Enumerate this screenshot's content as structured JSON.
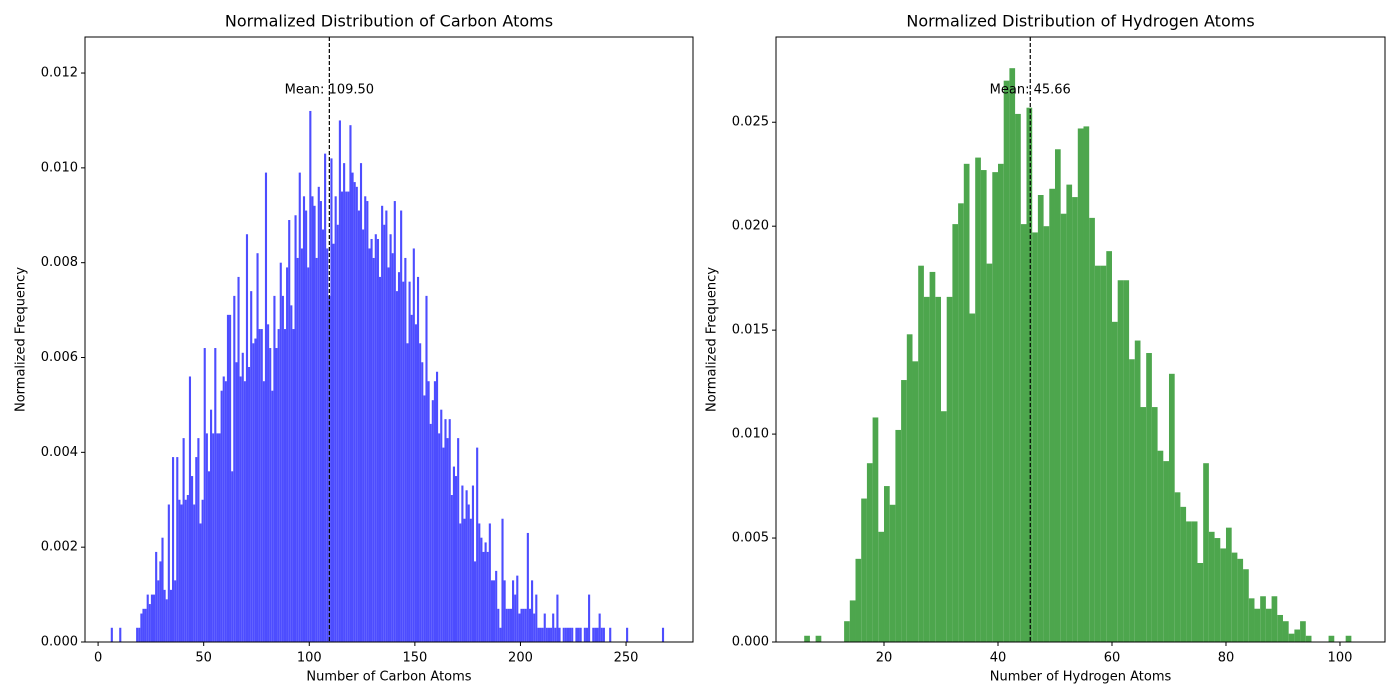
{
  "chart_data": [
    {
      "type": "histogram",
      "title": "Normalized Distribution of Carbon Atoms",
      "x_label": "Number of Carbon Atoms",
      "y_label": "Normalized Frequency",
      "color": "#4d4dff",
      "bins": [
        5,
        6,
        7,
        8,
        9,
        10,
        11,
        12,
        13,
        14,
        15,
        16,
        17,
        18,
        19,
        20,
        21,
        22,
        23,
        24,
        25,
        26,
        27,
        28,
        29,
        30,
        31,
        32,
        33,
        34,
        35,
        36,
        37,
        38,
        39,
        40,
        41,
        42,
        43,
        44,
        45,
        46,
        47,
        48,
        49,
        50,
        51,
        52,
        53,
        54,
        55,
        56,
        57,
        58,
        59,
        60,
        61,
        62,
        63,
        64,
        65,
        66,
        67,
        68,
        69,
        70,
        71,
        72,
        73,
        74,
        75,
        76,
        77,
        78,
        79,
        80,
        81,
        82,
        83,
        84,
        85,
        86,
        87,
        88,
        89,
        90,
        91,
        92,
        93,
        94,
        95,
        96,
        97,
        98,
        99,
        100,
        101,
        102,
        103,
        104,
        105,
        106,
        107,
        108,
        109,
        110,
        111,
        112,
        113,
        114,
        115,
        116,
        117,
        118,
        119,
        120,
        121,
        122,
        123,
        124,
        125,
        126,
        127,
        128,
        129,
        130,
        131,
        132,
        133,
        134,
        135,
        136,
        137,
        138,
        139,
        140,
        141,
        142,
        143,
        144,
        145,
        146,
        147,
        148,
        149,
        150,
        151,
        152,
        153,
        154,
        155,
        156,
        157,
        158,
        159,
        160,
        161,
        162,
        163,
        164,
        165,
        166,
        167,
        168,
        169,
        170,
        171,
        172,
        173,
        174,
        175,
        176,
        177,
        178,
        179,
        180,
        181,
        182,
        183,
        184,
        185,
        186,
        187,
        188,
        189,
        190,
        191,
        192,
        193,
        194,
        195,
        196,
        197,
        198,
        199,
        200,
        201,
        202,
        203,
        204,
        205,
        206,
        207,
        208,
        209,
        210,
        211,
        212,
        213,
        214,
        215,
        216,
        217,
        218,
        219,
        220,
        221,
        222,
        223,
        224,
        225,
        226,
        227,
        228,
        229,
        230,
        231,
        232,
        233,
        234,
        235,
        236,
        237,
        238,
        239,
        240,
        241,
        242,
        243,
        244,
        245,
        246,
        247,
        248,
        249,
        250,
        251,
        252,
        253,
        254,
        255,
        256,
        257,
        258,
        259,
        260,
        261,
        262,
        263,
        264,
        265,
        266,
        267,
        268,
        269,
        270
      ],
      "values": [
        0,
        0.0003,
        0,
        0,
        0,
        0.0003,
        0,
        0,
        0,
        0,
        0,
        0,
        0,
        0.0003,
        0.0003,
        0.0006,
        0.0007,
        0.0007,
        0.001,
        0.0008,
        0.001,
        0.001,
        0.0019,
        0.0013,
        0.0017,
        0.0022,
        0.0011,
        0.0009,
        0.0029,
        0.0011,
        0.0039,
        0.0013,
        0.0039,
        0.003,
        0.0029,
        0.0043,
        0.003,
        0.0031,
        0.0056,
        0.0035,
        0.0029,
        0.0039,
        0.0043,
        0.0025,
        0.003,
        0.0062,
        0.0044,
        0.0036,
        0.0049,
        0.0044,
        0.0062,
        0.0044,
        0.0044,
        0.0053,
        0.0056,
        0.0055,
        0.0069,
        0.0069,
        0.0036,
        0.0073,
        0.0059,
        0.0077,
        0.0056,
        0.0061,
        0.0055,
        0.0086,
        0.0058,
        0.0074,
        0.0063,
        0.0064,
        0.0082,
        0.0066,
        0.0066,
        0.0055,
        0.0099,
        0.0067,
        0.0062,
        0.0053,
        0.0073,
        0.0062,
        0.0066,
        0.008,
        0.0073,
        0.0066,
        0.0079,
        0.0089,
        0.0071,
        0.0066,
        0.009,
        0.0081,
        0.0099,
        0.0083,
        0.0094,
        0.0091,
        0.0079,
        0.0112,
        0.0094,
        0.0092,
        0.0081,
        0.0096,
        0.0093,
        0.0087,
        0.0103,
        0.0083,
        0.0073,
        0.0102,
        0.0084,
        0.0094,
        0.0088,
        0.011,
        0.0095,
        0.0101,
        0.0095,
        0.0095,
        0.0109,
        0.0099,
        0.0097,
        0.0096,
        0.0091,
        0.0101,
        0.0087,
        0.0094,
        0.0093,
        0.0083,
        0.0085,
        0.0081,
        0.0086,
        0.0085,
        0.0077,
        0.0092,
        0.0088,
        0.0091,
        0.0079,
        0.0086,
        0.0082,
        0.0093,
        0.0074,
        0.0078,
        0.0091,
        0.0076,
        0.0081,
        0.0063,
        0.0076,
        0.0069,
        0.0083,
        0.0067,
        0.0077,
        0.0063,
        0.0059,
        0.0052,
        0.0073,
        0.0055,
        0.0046,
        0.0051,
        0.0055,
        0.0057,
        0.0044,
        0.0049,
        0.0041,
        0.0047,
        0.0043,
        0.0047,
        0.0031,
        0.0037,
        0.0035,
        0.0043,
        0.0025,
        0.0033,
        0.0026,
        0.0032,
        0.0029,
        0.0026,
        0.0033,
        0.0017,
        0.0041,
        0.0025,
        0.0022,
        0.0019,
        0.0021,
        0.0019,
        0.0025,
        0.0013,
        0.0013,
        0.0015,
        0.0007,
        0.0003,
        0.0026,
        0.0013,
        0.0007,
        0.0007,
        0.0007,
        0.0013,
        0.001,
        0.0014,
        0.0006,
        0.0007,
        0.0007,
        0.0007,
        0.0023,
        0.0007,
        0.0013,
        0.0006,
        0.001,
        0.0003,
        0.0003,
        0.0003,
        0.0006,
        0.0003,
        0.0003,
        0.0003,
        0.0006,
        0.0003,
        0.001,
        0.0003,
        0,
        0.0003,
        0.0003,
        0.0003,
        0.0003,
        0.0003,
        0,
        0.0003,
        0.0003,
        0.0003,
        0,
        0.0003,
        0.0003,
        0.001,
        0,
        0.0003,
        0.0003,
        0.0003,
        0.0006,
        0.0003,
        0.0003,
        0,
        0,
        0.0003,
        0,
        0,
        0,
        0,
        0,
        0,
        0,
        0.0003,
        0,
        0,
        0,
        0,
        0,
        0,
        0,
        0,
        0,
        0,
        0,
        0,
        0,
        0,
        0,
        0,
        0.0003,
        0,
        0
      ],
      "xlim": [
        -6.2,
        281.7
      ],
      "xticks": [
        0,
        50,
        100,
        150,
        200,
        250
      ],
      "ylim": [
        0,
        0.01276
      ],
      "yticks": [
        {
          "value": 0,
          "label": "0.000"
        },
        {
          "value": 0.002,
          "label": "0.002"
        },
        {
          "value": 0.004,
          "label": "0.004"
        },
        {
          "value": 0.006,
          "label": "0.006"
        },
        {
          "value": 0.008,
          "label": "0.008"
        },
        {
          "value": 0.01,
          "label": "0.010"
        },
        {
          "value": 0.012,
          "label": "0.012"
        }
      ],
      "annotation": {
        "text": "Mean: 109.50",
        "x": 109.5
      }
    },
    {
      "type": "histogram",
      "title": "Normalized Distribution of Hydrogen Atoms",
      "x_label": "Number of Hydrogen Atoms",
      "y_label": "Normalized Frequency",
      "color": "#4da64d",
      "bins": [
        6,
        7,
        8,
        9,
        10,
        11,
        12,
        13,
        14,
        15,
        16,
        17,
        18,
        19,
        20,
        21,
        22,
        23,
        24,
        25,
        26,
        27,
        28,
        29,
        30,
        31,
        32,
        33,
        34,
        35,
        36,
        37,
        38,
        39,
        40,
        41,
        42,
        43,
        44,
        45,
        46,
        47,
        48,
        49,
        50,
        51,
        52,
        53,
        54,
        55,
        56,
        57,
        58,
        59,
        60,
        61,
        62,
        63,
        64,
        65,
        66,
        67,
        68,
        69,
        70,
        71,
        72,
        73,
        74,
        75,
        76,
        77,
        78,
        79,
        80,
        81,
        82,
        83,
        84,
        85,
        86,
        87,
        88,
        89,
        90,
        91,
        92,
        93,
        94,
        95,
        96,
        97,
        98,
        99,
        100,
        101,
        102
      ],
      "values": [
        0.0003,
        0,
        0.0003,
        0,
        0,
        0,
        0,
        0.001,
        0.002,
        0.004,
        0.0069,
        0.0086,
        0.0108,
        0.0053,
        0.0075,
        0.0066,
        0.0102,
        0.0126,
        0.0148,
        0.0135,
        0.0181,
        0.0166,
        0.0178,
        0.0166,
        0.0111,
        0.0166,
        0.0201,
        0.0211,
        0.023,
        0.0158,
        0.0233,
        0.0227,
        0.0182,
        0.0226,
        0.023,
        0.027,
        0.0276,
        0.0254,
        0.0201,
        0.0257,
        0.0197,
        0.0215,
        0.02,
        0.0218,
        0.0237,
        0.0206,
        0.022,
        0.0214,
        0.0247,
        0.0248,
        0.0204,
        0.0181,
        0.0181,
        0.0188,
        0.0154,
        0.0174,
        0.0174,
        0.0136,
        0.0145,
        0.0113,
        0.0139,
        0.0113,
        0.0092,
        0.0087,
        0.0129,
        0.0072,
        0.0065,
        0.0058,
        0.0058,
        0.0038,
        0.0086,
        0.0053,
        0.005,
        0.0045,
        0.0055,
        0.0043,
        0.004,
        0.0035,
        0.0021,
        0.0016,
        0.0022,
        0.0016,
        0.0022,
        0.0013,
        0.001,
        0.0004,
        0.0006,
        0.001,
        0.0003,
        0,
        0,
        0,
        0.0003,
        0,
        0,
        0.0003
      ],
      "xlim": [
        1.05,
        107.9
      ],
      "xticks": [
        20,
        40,
        60,
        80,
        100
      ],
      "ylim": [
        0,
        0.0291
      ],
      "yticks": [
        {
          "value": 0,
          "label": "0.000"
        },
        {
          "value": 0.005,
          "label": "0.005"
        },
        {
          "value": 0.01,
          "label": "0.010"
        },
        {
          "value": 0.015,
          "label": "0.015"
        },
        {
          "value": 0.02,
          "label": "0.020"
        },
        {
          "value": 0.025,
          "label": "0.025"
        }
      ],
      "annotation": {
        "text": "Mean: 45.66",
        "x": 45.66
      }
    }
  ]
}
